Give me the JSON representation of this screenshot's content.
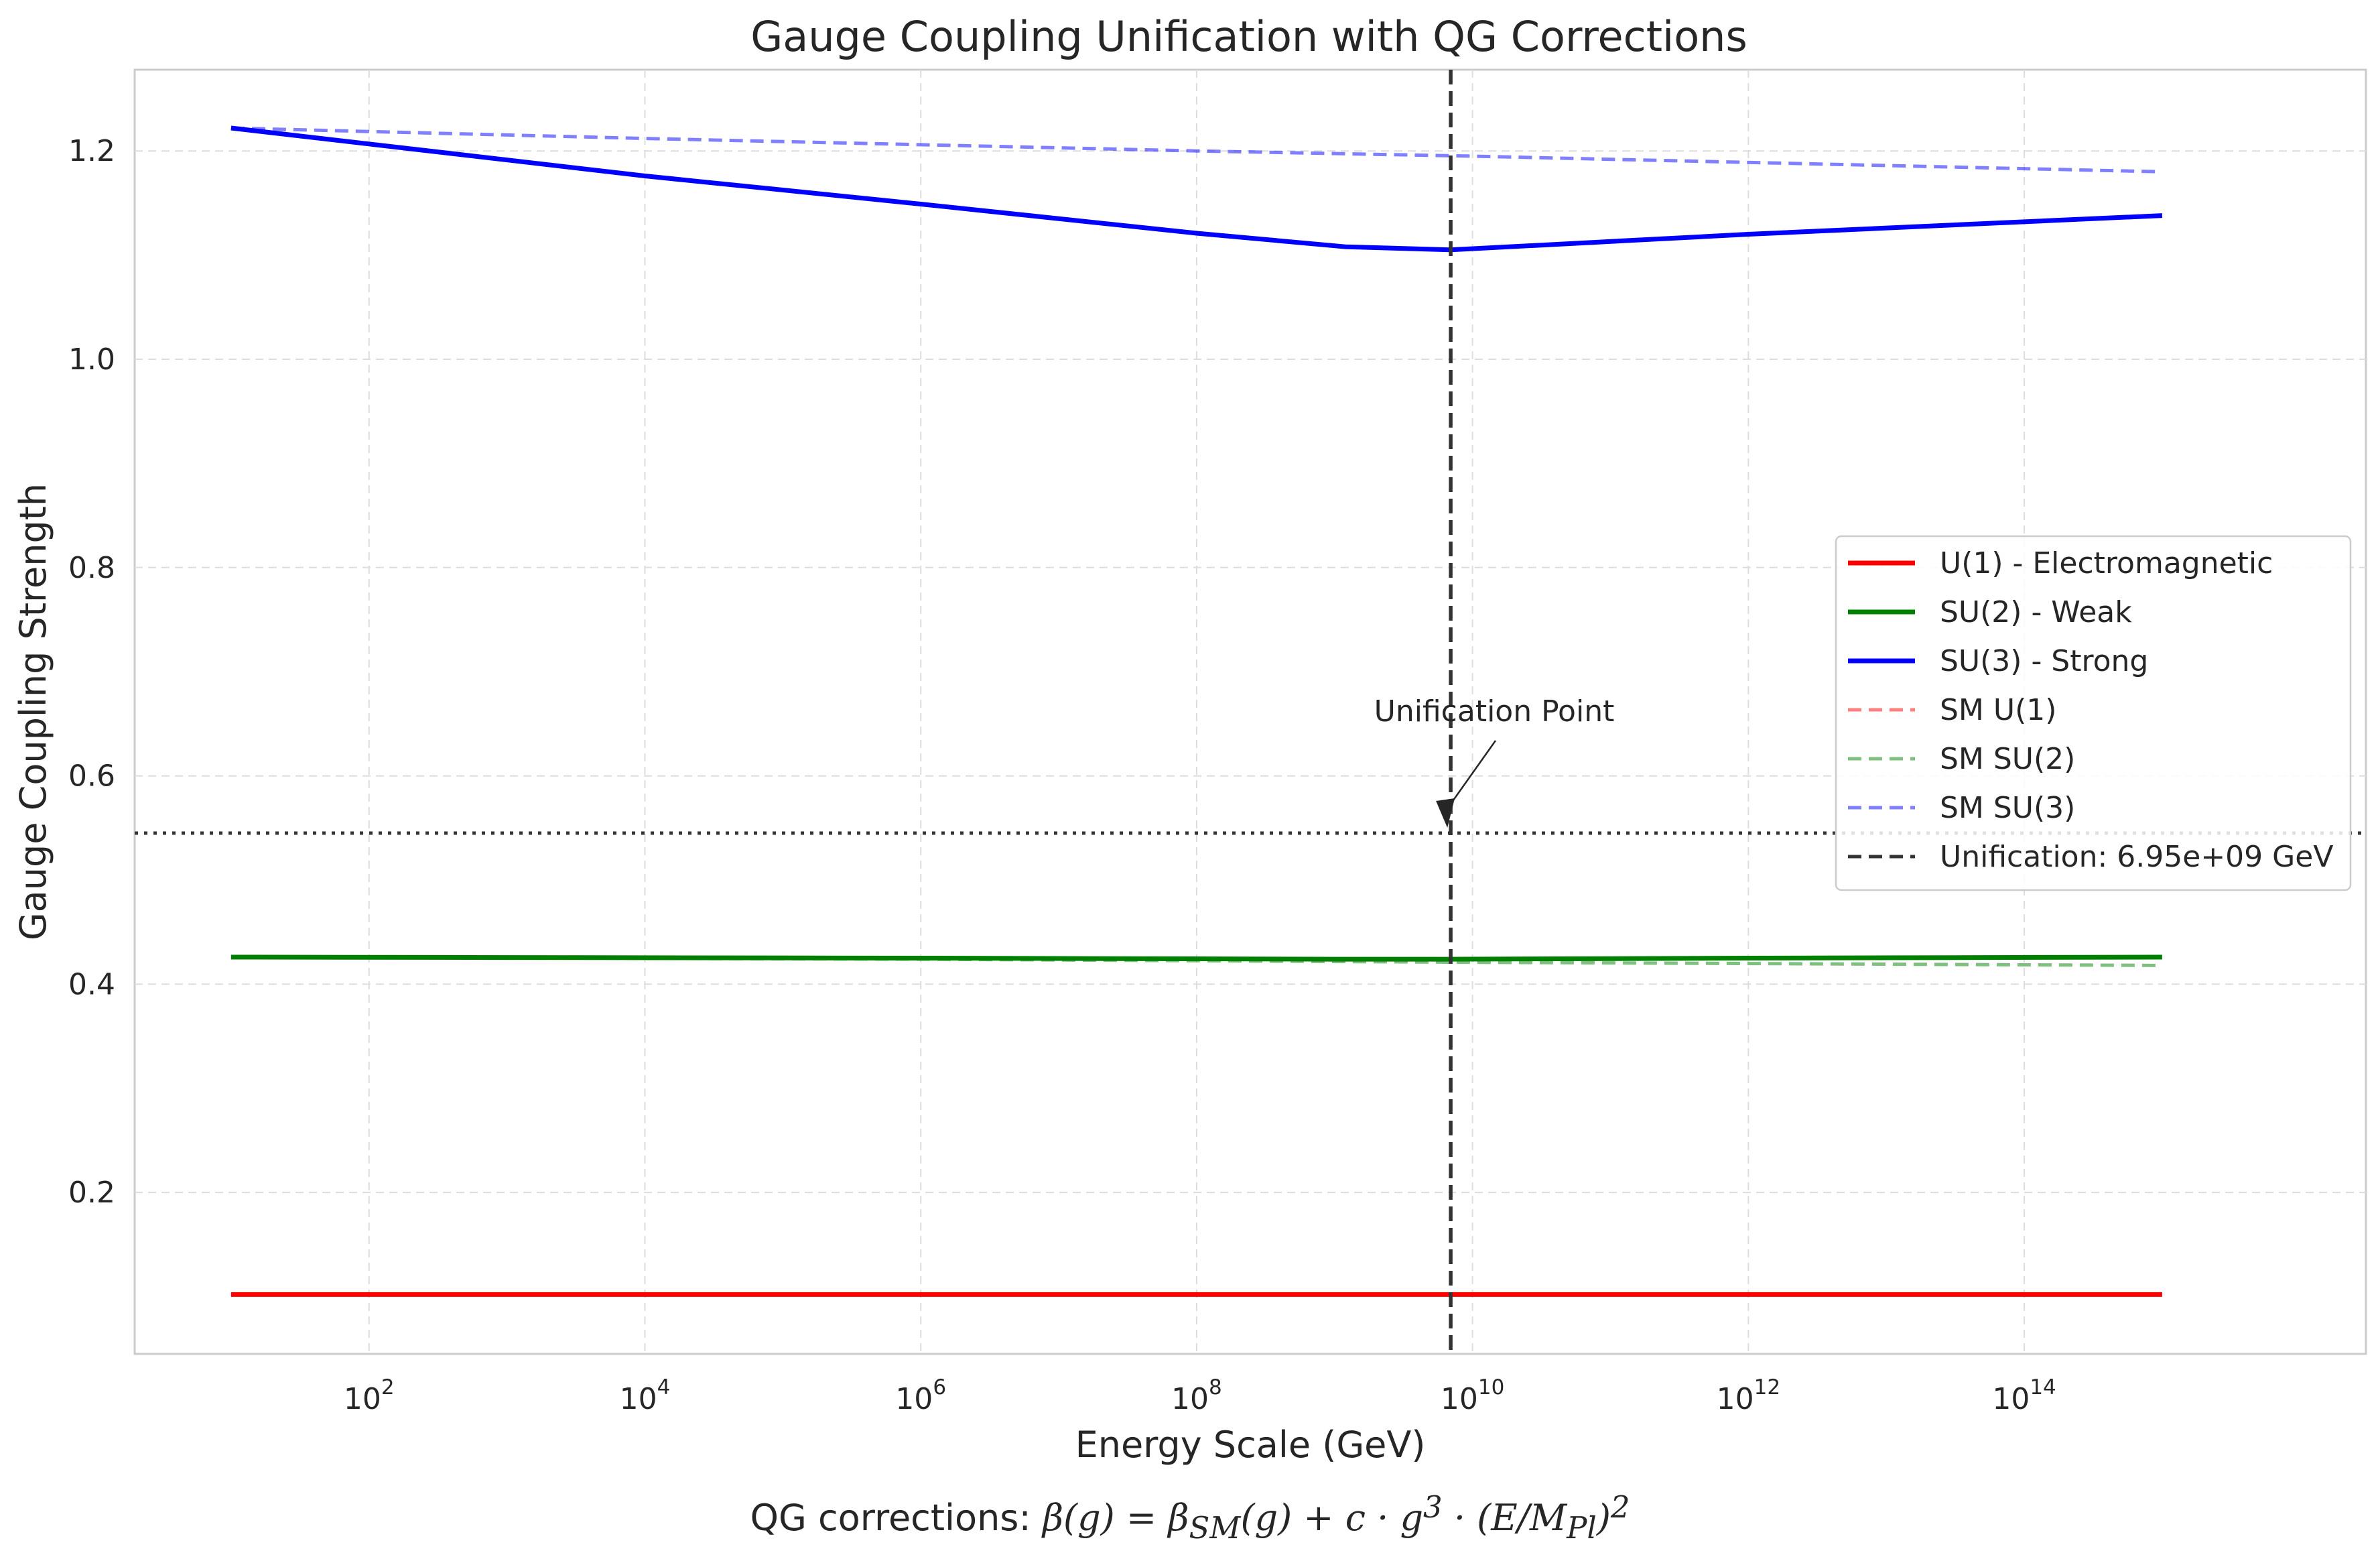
{
  "chart_data": {
    "type": "line",
    "title": "Gauge Coupling Unification with QG Corrections",
    "xlabel": "Energy Scale (GeV)",
    "ylabel": "Gauge Coupling Strength",
    "xscale": "log",
    "xlim": [
      2.0,
      3e+16
    ],
    "ylim": [
      0.045,
      1.278
    ],
    "grid": true,
    "legend_position": "center-right",
    "x_ticks": [
      {
        "value": 100,
        "base": "10",
        "exp": "2"
      },
      {
        "value": 10000,
        "base": "10",
        "exp": "4"
      },
      {
        "value": 1000000,
        "base": "10",
        "exp": "6"
      },
      {
        "value": 100000000,
        "base": "10",
        "exp": "8"
      },
      {
        "value": 10000000000,
        "base": "10",
        "exp": "10"
      },
      {
        "value": 1000000000000,
        "base": "10",
        "exp": "12"
      },
      {
        "value": 100000000000000,
        "base": "10",
        "exp": "14"
      }
    ],
    "y_ticks": [
      {
        "value": 0.2,
        "label": "0.2"
      },
      {
        "value": 0.4,
        "label": "0.4"
      },
      {
        "value": 0.6,
        "label": "0.6"
      },
      {
        "value": 0.8,
        "label": "0.8"
      },
      {
        "value": 1.0,
        "label": "1.0"
      },
      {
        "value": 1.2,
        "label": "1.2"
      }
    ],
    "series": [
      {
        "name": "U(1) - Electromagnetic",
        "color": "#ff0000",
        "style": "solid",
        "x": [
          10,
          1000000000000000.0
        ],
        "y": [
          0.102,
          0.102
        ]
      },
      {
        "name": "SU(2) - Weak",
        "color": "#008000",
        "style": "solid",
        "x": [
          10,
          1000000.0,
          1000000000.0,
          6950000000.0,
          1000000000000.0,
          1000000000000000.0
        ],
        "y": [
          0.426,
          0.425,
          0.424,
          0.424,
          0.425,
          0.426
        ]
      },
      {
        "name": "SU(3) - Strong",
        "color": "#0000ff",
        "style": "solid",
        "x": [
          10,
          10000.0,
          1000000.0,
          100000000.0,
          1200000000.0,
          6950000000.0,
          1000000000000.0,
          1000000000000000.0
        ],
        "y": [
          1.222,
          1.176,
          1.149,
          1.121,
          1.108,
          1.105,
          1.12,
          1.138
        ]
      },
      {
        "name": "SM U(1)",
        "color": "#ff0000",
        "style": "dashed",
        "alpha": 0.5,
        "x": [
          10,
          1000000000000000.0
        ],
        "y": [
          0.102,
          0.102
        ]
      },
      {
        "name": "SM SU(2)",
        "color": "#008000",
        "style": "dashed",
        "alpha": 0.5,
        "x": [
          10,
          1000000.0,
          10000000000.0,
          1000000000000000.0
        ],
        "y": [
          0.426,
          0.424,
          0.421,
          0.418
        ]
      },
      {
        "name": "SM SU(3)",
        "color": "#0000ff",
        "style": "dashed",
        "alpha": 0.5,
        "x": [
          10,
          10000.0,
          100000000.0,
          10000000000.0,
          1000000000000000.0
        ],
        "y": [
          1.222,
          1.212,
          1.2,
          1.195,
          1.18
        ]
      },
      {
        "name": "Unification: 6.95e+09 GeV",
        "color": "#333333",
        "style": "dashed",
        "vertical_at": 6950000000.0
      }
    ],
    "horizontal_line": {
      "y": 0.545,
      "color": "#333333",
      "style": "dotted"
    },
    "annotation": {
      "text": "Unification Point",
      "x": 6950000000.0,
      "y": 0.545,
      "text_x": 800000000.0,
      "text_y": 0.655
    }
  },
  "footer": {
    "prefix": "QG corrections: ",
    "formula": "β(g) = β",
    "formula_sub1": "SM",
    "formula_mid": "(g) + c · g",
    "formula_sup": "3",
    "formula_mid2": " · (E/M",
    "formula_sub2": "Pl",
    "formula_end": ")",
    "formula_sup2": "2"
  }
}
